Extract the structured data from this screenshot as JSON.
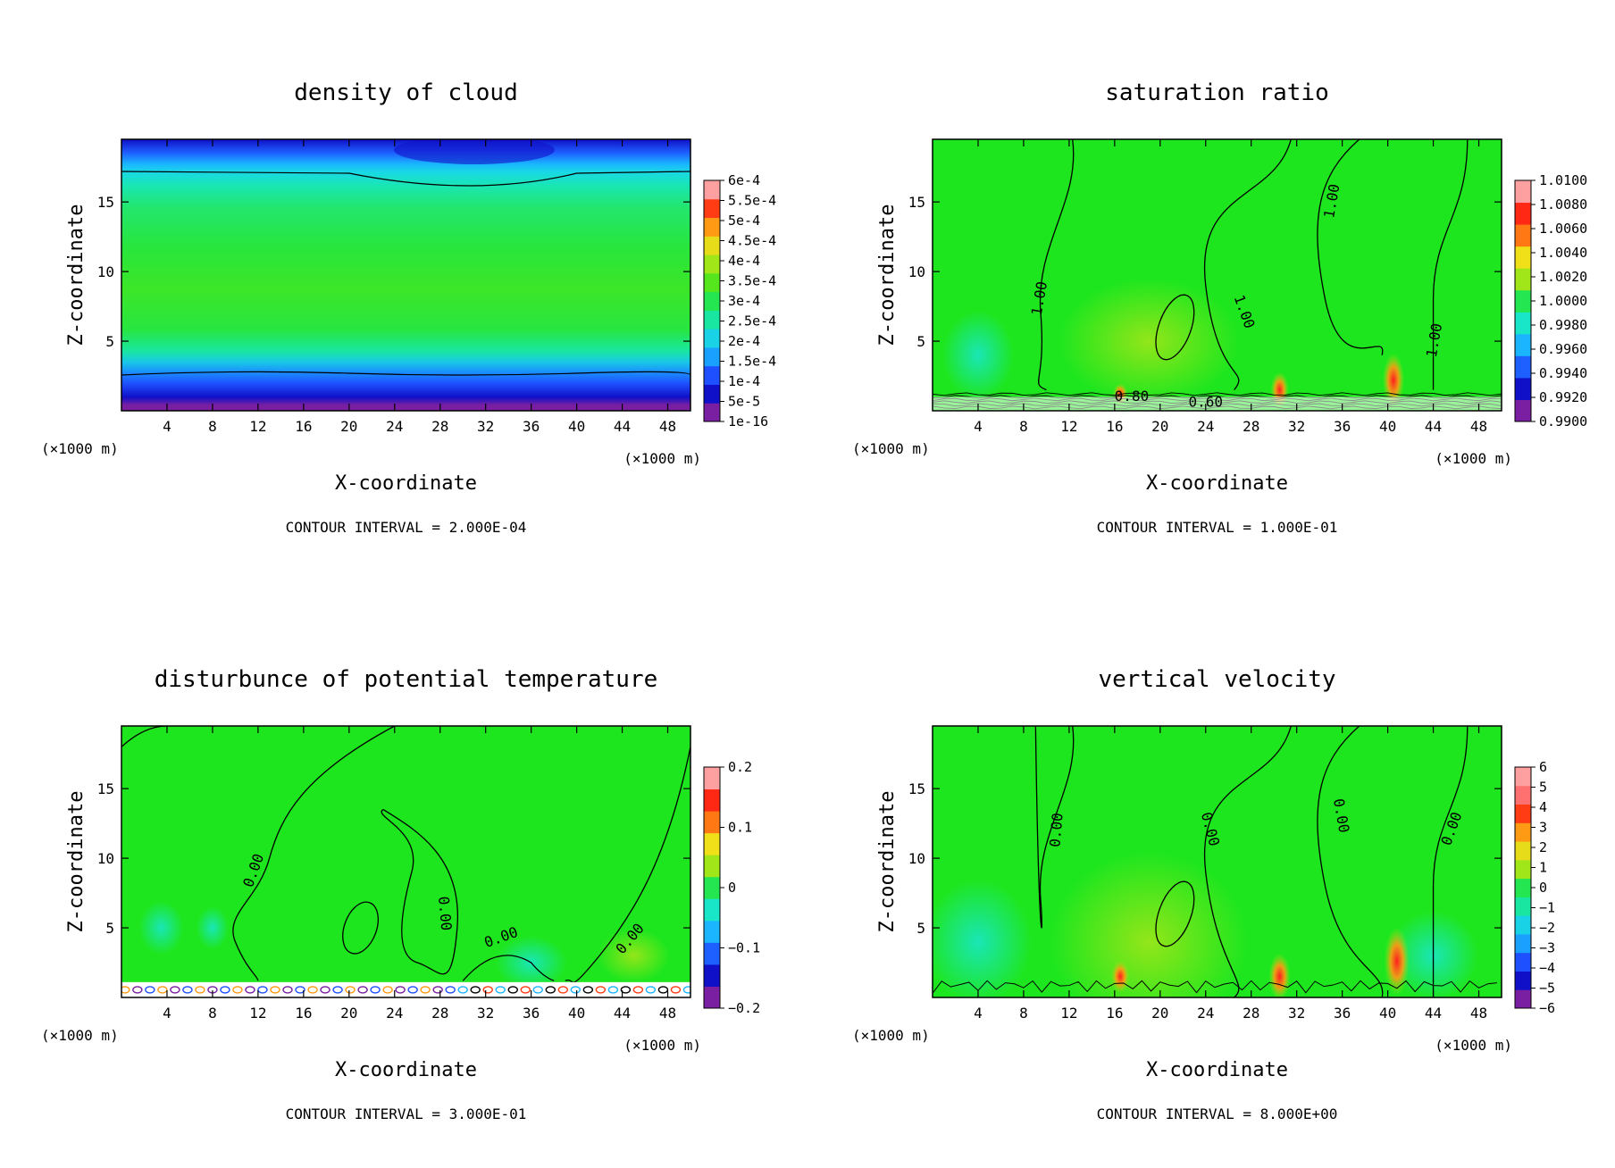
{
  "chart_data": [
    {
      "type": "heatmap",
      "id": "p1",
      "title": "density of cloud",
      "xlabel": "X-coordinate",
      "ylabel": "Z-coordinate",
      "x_unit": "(×1000 m)",
      "xlim": [
        0,
        50
      ],
      "ylim": [
        0,
        19.5
      ],
      "xticks": [
        "4",
        "8",
        "12",
        "16",
        "20",
        "24",
        "28",
        "32",
        "36",
        "40",
        "44",
        "48"
      ],
      "yticks": [
        "5",
        "10",
        "15"
      ],
      "contour_interval": "CONTOUR INTERVAL = 2.000E-04",
      "colorbar": [
        "1e-16",
        "5e-5",
        "1e-4",
        "1.5e-4",
        "2e-4",
        "2.5e-4",
        "3e-4",
        "3.5e-4",
        "4e-4",
        "4.5e-4",
        "5e-4",
        "5.5e-4",
        "6e-4"
      ],
      "colorbar_colors": [
        "#7a1fa2",
        "#1010c8",
        "#1e50ff",
        "#1aa0ff",
        "#19d2e6",
        "#19e6a0",
        "#23e650",
        "#55e61e",
        "#a0e619",
        "#e6dc19",
        "#ff9a14",
        "#ff3c14",
        "#ffa0a0"
      ],
      "contour_labels": []
    },
    {
      "type": "heatmap",
      "id": "p2",
      "title": "saturation ratio",
      "xlabel": "X-coordinate",
      "ylabel": "Z-coordinate",
      "x_unit": "(×1000 m)",
      "xlim": [
        0,
        50
      ],
      "ylim": [
        0,
        19.5
      ],
      "xticks": [
        "4",
        "8",
        "12",
        "16",
        "20",
        "24",
        "28",
        "32",
        "36",
        "40",
        "44",
        "48"
      ],
      "yticks": [
        "5",
        "10",
        "15"
      ],
      "contour_interval": "CONTOUR INTERVAL = 1.000E-01",
      "colorbar": [
        "0.9900",
        "0.9920",
        "0.9940",
        "0.9960",
        "0.9980",
        "1.0000",
        "1.0020",
        "1.0040",
        "1.0060",
        "1.0080",
        "1.0100"
      ],
      "colorbar_colors": [
        "#7a1fa2",
        "#1010c8",
        "#1e60ff",
        "#1ab4ff",
        "#19e6c8",
        "#23e650",
        "#a0e619",
        "#f0e019",
        "#ff7814",
        "#ff2814",
        "#ffa0a0"
      ],
      "contour_labels": [
        "1.00",
        "1.00",
        "1.00",
        "1.00",
        "0.80",
        "0.60"
      ]
    },
    {
      "type": "heatmap",
      "id": "p3",
      "title": "disturbunce of potential temperature",
      "xlabel": "X-coordinate",
      "ylabel": "Z-coordinate",
      "x_unit": "(×1000 m)",
      "xlim": [
        0,
        50
      ],
      "ylim": [
        0,
        19.5
      ],
      "xticks": [
        "4",
        "8",
        "12",
        "16",
        "20",
        "24",
        "28",
        "32",
        "36",
        "40",
        "44",
        "48"
      ],
      "yticks": [
        "5",
        "10",
        "15"
      ],
      "contour_interval": "CONTOUR INTERVAL = 3.000E-01",
      "colorbar": [
        "−0.2",
        "−0.1",
        "0",
        "0.1",
        "0.2"
      ],
      "colorbar_colors": [
        "#7a1fa2",
        "#1010c8",
        "#1e60ff",
        "#1ab4ff",
        "#19e6c8",
        "#23e650",
        "#a0e619",
        "#f0e019",
        "#ff7814",
        "#ff2814",
        "#ffa0a0"
      ],
      "contour_labels": [
        "0.00",
        "0.00",
        "0.00",
        "0.00"
      ]
    },
    {
      "type": "heatmap",
      "id": "p4",
      "title": "vertical velocity",
      "xlabel": "X-coordinate",
      "ylabel": "Z-coordinate",
      "x_unit": "(×1000 m)",
      "xlim": [
        0,
        50
      ],
      "ylim": [
        0,
        19.5
      ],
      "xticks": [
        "4",
        "8",
        "12",
        "16",
        "20",
        "24",
        "28",
        "32",
        "36",
        "40",
        "44",
        "48"
      ],
      "yticks": [
        "5",
        "10",
        "15"
      ],
      "contour_interval": "CONTOUR INTERVAL = 8.000E+00",
      "colorbar": [
        "−6",
        "−5",
        "−4",
        "−3",
        "−2",
        "−1",
        "0",
        "1",
        "2",
        "3",
        "4",
        "5",
        "6"
      ],
      "colorbar_colors": [
        "#7a1fa2",
        "#1010c8",
        "#1e50ff",
        "#1aa0ff",
        "#19d2e6",
        "#19e6a0",
        "#23e650",
        "#a0e619",
        "#e6dc19",
        "#ff9a14",
        "#ff3c14",
        "#ff7070",
        "#ffa0a0"
      ],
      "contour_labels": [
        "0.00",
        "0.00",
        "0.00",
        "0.00"
      ]
    }
  ]
}
